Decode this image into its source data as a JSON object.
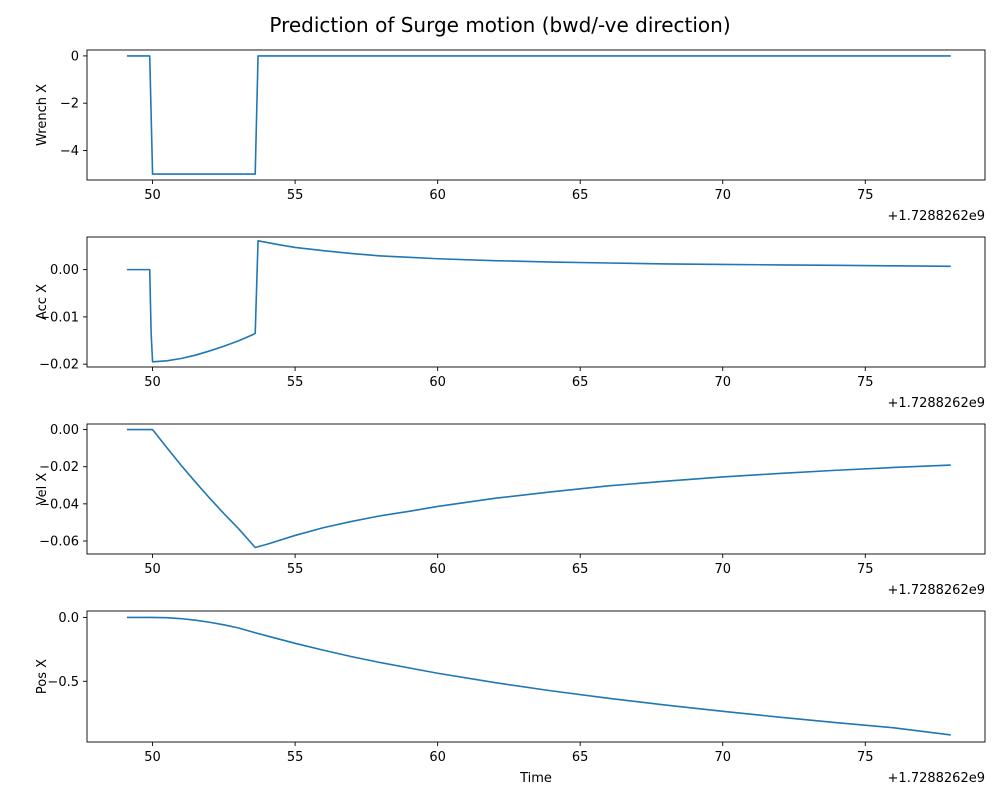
{
  "chart_data": {
    "type": "line",
    "title": "Prediction of Surge motion (bwd/-ve direction)",
    "xlabel": "Time",
    "x_offset_label": "+1.7288262e9",
    "xlim": [
      47.7,
      79.2
    ],
    "x_ticks": [
      50,
      55,
      60,
      65,
      70,
      75
    ],
    "line_color": "#1f77b4",
    "grid": false,
    "subplots": [
      {
        "ylabel": "Wrench X",
        "ylim": [
          -5.25,
          0.25
        ],
        "y_ticks": [
          0,
          -2,
          -4
        ],
        "y_tick_labels": [
          "0",
          "−2",
          "−4"
        ],
        "x": [
          49.1,
          49.9,
          50.0,
          53.6,
          53.7,
          78.0
        ],
        "y": [
          0,
          0,
          -5,
          -5,
          0,
          0
        ]
      },
      {
        "ylabel": "Acc X",
        "ylim": [
          -0.0206,
          0.0069
        ],
        "y_ticks": [
          0.0,
          -0.01,
          -0.02
        ],
        "y_tick_labels": [
          "0.00",
          "−0.01",
          "−0.02"
        ],
        "x": [
          49.1,
          49.9,
          49.95,
          50.0,
          50.5,
          51.0,
          51.5,
          52.0,
          52.5,
          53.0,
          53.5,
          53.6,
          53.7,
          54.5,
          55.0,
          56.0,
          57.0,
          58.0,
          59.0,
          60.0,
          62.0,
          64.0,
          66.0,
          68.0,
          70.0,
          72.0,
          74.0,
          76.0,
          78.0
        ],
        "y": [
          0,
          0,
          -0.0135,
          -0.0195,
          -0.0193,
          -0.0188,
          -0.0181,
          -0.0172,
          -0.0162,
          -0.0151,
          -0.0138,
          -0.0135,
          0.0061,
          0.0052,
          0.0047,
          0.004,
          0.0034,
          0.0029,
          0.0026,
          0.0023,
          0.0019,
          0.0016,
          0.0014,
          0.0012,
          0.0011,
          0.001,
          0.0009,
          0.0008,
          0.0007
        ]
      },
      {
        "ylabel": "Vel X",
        "ylim": [
          -0.067,
          0.003
        ],
        "y_ticks": [
          0.0,
          -0.02,
          -0.04,
          -0.06
        ],
        "y_tick_labels": [
          "0.00",
          "−0.02",
          "−0.04",
          "−0.06"
        ],
        "x": [
          49.1,
          50.0,
          50.5,
          51.0,
          51.5,
          52.0,
          52.5,
          53.0,
          53.6,
          54.0,
          55.0,
          56.0,
          57.0,
          58.0,
          59.0,
          60.0,
          62.0,
          64.0,
          66.0,
          68.0,
          70.0,
          72.0,
          74.0,
          76.0,
          78.0
        ],
        "y": [
          0,
          0,
          -0.0097,
          -0.0192,
          -0.0282,
          -0.0369,
          -0.0452,
          -0.0531,
          -0.0635,
          -0.0618,
          -0.057,
          -0.0528,
          -0.0494,
          -0.0464,
          -0.044,
          -0.0414,
          -0.037,
          -0.0335,
          -0.0303,
          -0.0278,
          -0.0255,
          -0.0236,
          -0.0219,
          -0.0204,
          -0.0191
        ]
      },
      {
        "ylabel": "Pos X",
        "ylim": [
          -0.975,
          0.05
        ],
        "y_ticks": [
          0.0,
          -0.5
        ],
        "y_tick_labels": [
          "0.0",
          "−0.5"
        ],
        "x": [
          49.1,
          50.0,
          50.5,
          51.0,
          51.5,
          52.0,
          52.5,
          53.0,
          53.6,
          54.0,
          55.0,
          56.0,
          57.0,
          58.0,
          60.0,
          62.0,
          64.0,
          66.0,
          68.0,
          70.0,
          72.0,
          74.0,
          76.0,
          78.0
        ],
        "y": [
          0,
          0,
          -0.0025,
          -0.0098,
          -0.022,
          -0.038,
          -0.058,
          -0.082,
          -0.12,
          -0.144,
          -0.203,
          -0.257,
          -0.308,
          -0.354,
          -0.437,
          -0.51,
          -0.575,
          -0.633,
          -0.686,
          -0.735,
          -0.781,
          -0.824,
          -0.864,
          -0.92
        ]
      }
    ]
  }
}
